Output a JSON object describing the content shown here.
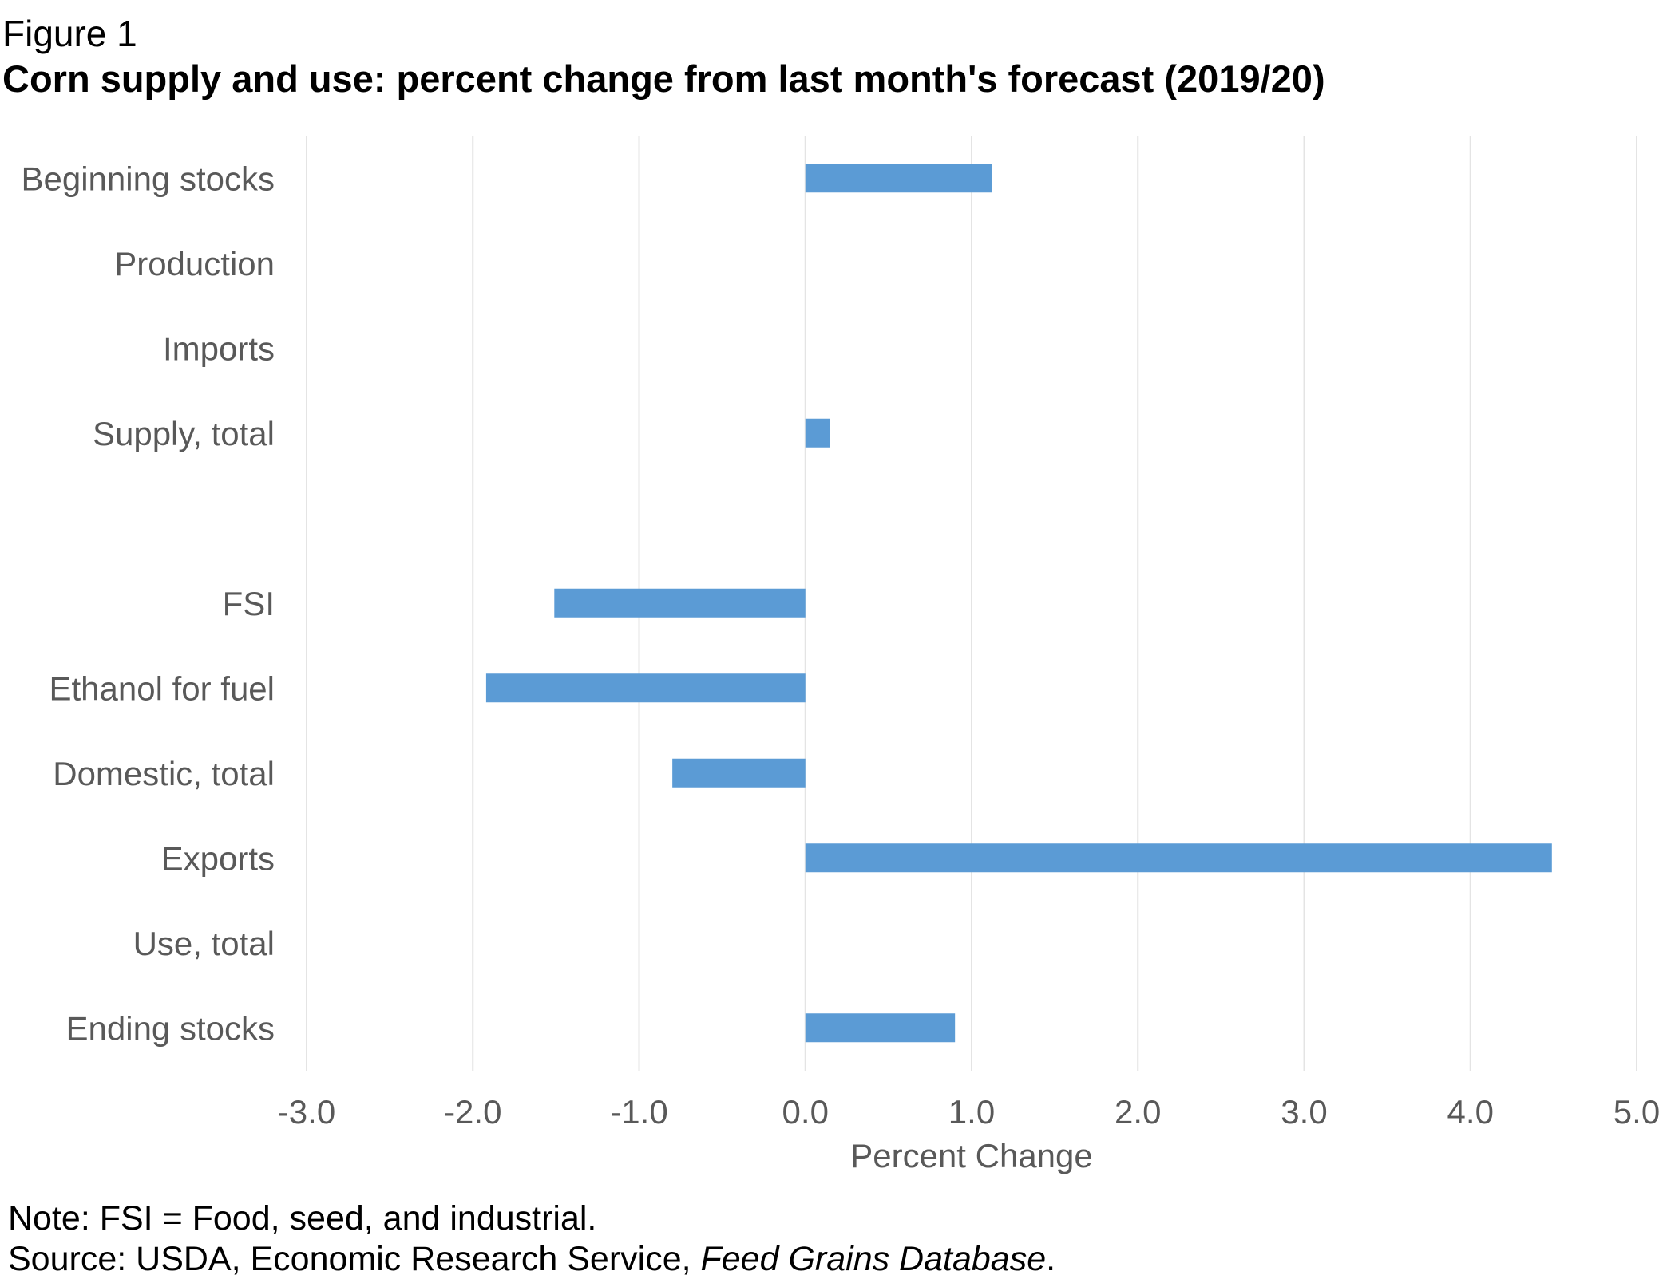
{
  "figure_label": "Figure 1",
  "figure_title": "Corn supply and use: percent change from last month's forecast (2019/20)",
  "note": "Note: FSI = Food, seed, and industrial.",
  "source": {
    "prefix": "Source: USDA, Economic Research Service, ",
    "database": "Feed Grains Database",
    "suffix": "."
  },
  "colors": {
    "bar": "#5b9bd5",
    "grid": "#e4e4e4",
    "tick_text": "#595959"
  },
  "chart_data": {
    "type": "bar",
    "orientation": "horizontal",
    "categories": [
      "Beginning stocks",
      "Production",
      "Imports",
      "Supply, total",
      "",
      "FSI",
      "Ethanol for fuel",
      "Domestic, total",
      "Exports",
      "Use, total",
      "Ending stocks"
    ],
    "values": [
      1.12,
      0,
      0,
      0.15,
      null,
      -1.51,
      -1.92,
      -0.8,
      4.49,
      0,
      0.9
    ],
    "xlabel": "Percent Change",
    "ylabel": "",
    "xlim": [
      -3.0,
      5.0
    ],
    "xticks": [
      "-3.0",
      "-2.0",
      "-1.0",
      "0.0",
      "1.0",
      "2.0",
      "3.0",
      "4.0",
      "5.0"
    ],
    "grid": "vertical",
    "legend": "none"
  }
}
